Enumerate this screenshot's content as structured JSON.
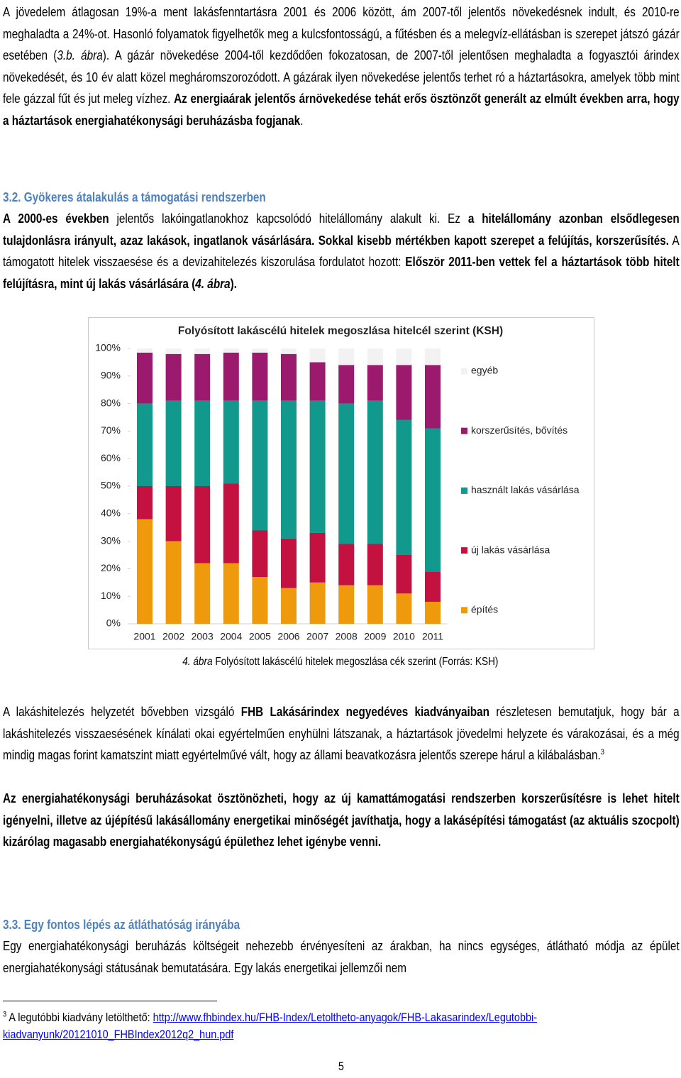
{
  "blocks": [
    {
      "kind": "paragraph",
      "runs": [
        {
          "text": "A jövedelem átlagosan 19%-a ment lakásfenntartásra 2001 és 2006 között, ám 2007-től jelentős növekedésnek indult, és 2010-re meghaladta a 24%-ot. Hasonló folyamatok figyelhetők meg a kulcsfontosságú, a fűtésben és a melegvíz-ellátásban is szerepet játszó gázár esetében ("
        },
        {
          "text": "3.b. ábra",
          "italic": true
        },
        {
          "text": "). A gázár növekedése 2004-től kezdődően fokozatosan, de 2007-től jelentősen meghaladta a fogyasztói árindex növekedését, és 10 év alatt közel megháromszorozódott. A gázárak ilyen növekedése jelentős terhet ró a háztartásokra, amelyek több mint fele gázzal fűt és jut meleg vízhez. "
        },
        {
          "text": "Az energiaárak jelentős árnövekedése tehát erős ösztönzőt generált az elmúlt években arra, hogy a háztartások energiahatékonysági beruházásba fogjanak",
          "bold": true
        },
        {
          "text": "."
        }
      ]
    },
    {
      "kind": "heading",
      "runs": [
        {
          "text": "3.2. Gyökeres átalakulás a támogatási rendszerben",
          "bold": true
        }
      ]
    },
    {
      "kind": "paragraph",
      "runs": [
        {
          "text": "A 2000-es években",
          "bold": true
        },
        {
          "text": " jelentős lakóingatlanokhoz kapcsolódó hitelállomány alakult ki. Ez "
        },
        {
          "text": "a hitelállomány azonban elsődlegesen tulajdonlásra irányult, azaz lakások, ingatlanok vásárlására. Sokkal kisebb mértékben kapott szerepet a felújítás, korszerűsítés.",
          "bold": true
        },
        {
          "text": " A támogatott hitelek visszaesése és a devizahitelezés kiszorulása fordulatot hozott: "
        },
        {
          "text": "Először 2011-ben vettek fel a háztartások több hitelt felújításra, mint új lakás vásárlására (",
          "bold": true
        },
        {
          "text": "4. ábra",
          "bold": true,
          "italic": true
        },
        {
          "text": ").",
          "bold": true
        }
      ]
    },
    {
      "kind": "caption",
      "runs": [
        {
          "text": "4. ábra",
          "italic": true
        },
        {
          "text": " Folyósított lakáscélú hitelek megoszlása cék szerint (Forrás: KSH)"
        }
      ]
    },
    {
      "kind": "paragraph",
      "runs": [
        {
          "text": "A lakáshitelezés helyzetét bővebben vizsgáló "
        },
        {
          "text": "FHB Lakásárindex negyedéves kiadványaiban",
          "bold": true
        },
        {
          "text": " részletesen bemutatjuk, hogy bár a lakáshitelezés visszaesésének kínálati okai egyértelműen enyhülni látszanak, a háztartások jövedelmi helyzete és várakozásai, és a még mindig magas forint kamatszint miatt egyértelművé vált, hogy az állami beavatkozásra jelentős szerepe hárul a kilábalásban."
        },
        {
          "text": "3",
          "sup": true
        }
      ]
    },
    {
      "kind": "paragraph",
      "runs": [
        {
          "text": "Az energiahatékonysági beruházásokat ösztönözheti, hogy az új kamattámogatási rendszerben korszerűsítésre is lehet hitelt igényelni, illetve az újépítésű lakásállomány energetikai minőségét javíthatja, hogy a lakásépítési támogatást (az aktuális szocpolt) kizárólag magasabb energiahatékonyságú épülethez lehet igénybe venni.",
          "bold": true
        }
      ]
    },
    {
      "kind": "heading",
      "runs": [
        {
          "text": "3.3. Egy fontos lépés az átláthatóság irányába",
          "bold": true
        }
      ]
    },
    {
      "kind": "paragraph",
      "runs": [
        {
          "text": "Egy energiahatékonysági beruházás költségeit nehezebb érvényesíteni az árakban, ha nincs egységes, átlátható módja az épület energiahatékonysági státusának bemutatására. Egy lakás energetikai jellemzői nem"
        }
      ]
    },
    {
      "kind": "footnote",
      "runs": [
        {
          "text": "3",
          "sup": true
        },
        {
          "text": " A legutóbbi kiadvány letölthető: "
        },
        {
          "text": "http://www.fhbindex.hu/FHB-Index/Letoltheto-anyagok/FHB-Lakasarindex/Legutobbi-kiadvanyunk/20121010_FHBIndex2012q2_hun.pdf",
          "link": true
        }
      ]
    },
    {
      "kind": "page-number",
      "runs": [
        {
          "text": "5"
        }
      ]
    }
  ],
  "chart_data": {
    "type": "stacked-bar",
    "title": "Folyósított lakáscélú hitelek megoszlása hitelcél szerint (KSH)",
    "categories": [
      "2001",
      "2002",
      "2003",
      "2004",
      "2005",
      "2006",
      "2007",
      "2008",
      "2009",
      "2010",
      "2011"
    ],
    "series": [
      {
        "name": "építés",
        "color": "#ef9a0c",
        "values": [
          38,
          30,
          22,
          22,
          17,
          13,
          15,
          14,
          14,
          11,
          8
        ]
      },
      {
        "name": "új lakás vásárlása",
        "color": "#c3123f",
        "values": [
          12,
          20,
          28,
          29,
          17,
          18,
          18,
          15,
          15,
          14,
          11
        ]
      },
      {
        "name": "használt lakás vásárlása",
        "color": "#11998e",
        "values": [
          30,
          31,
          31,
          30,
          47,
          50,
          48,
          51,
          52,
          49,
          52
        ]
      },
      {
        "name": "korszerűsítés, bővítés",
        "color": "#9c1a6e",
        "values": [
          18.5,
          17,
          17,
          17.5,
          17.5,
          17,
          14,
          14,
          13,
          20,
          23
        ]
      },
      {
        "name": "egyéb",
        "color": "#f2f2f2",
        "values": [
          1.5,
          2,
          2,
          1.5,
          1.5,
          2,
          5,
          6,
          6,
          6,
          6
        ]
      }
    ],
    "ylim": [
      0,
      100
    ],
    "yticks": [
      {
        "value": 0,
        "label": "0%"
      },
      {
        "value": 10,
        "label": "10%"
      },
      {
        "value": 20,
        "label": "20%"
      },
      {
        "value": 30,
        "label": "30%"
      },
      {
        "value": 40,
        "label": "40%"
      },
      {
        "value": 50,
        "label": "50%"
      },
      {
        "value": 60,
        "label": "60%"
      },
      {
        "value": 70,
        "label": "70%"
      },
      {
        "value": 80,
        "label": "80%"
      },
      {
        "value": 90,
        "label": "90%"
      },
      {
        "value": 100,
        "label": "100%"
      }
    ],
    "legend": "right"
  }
}
